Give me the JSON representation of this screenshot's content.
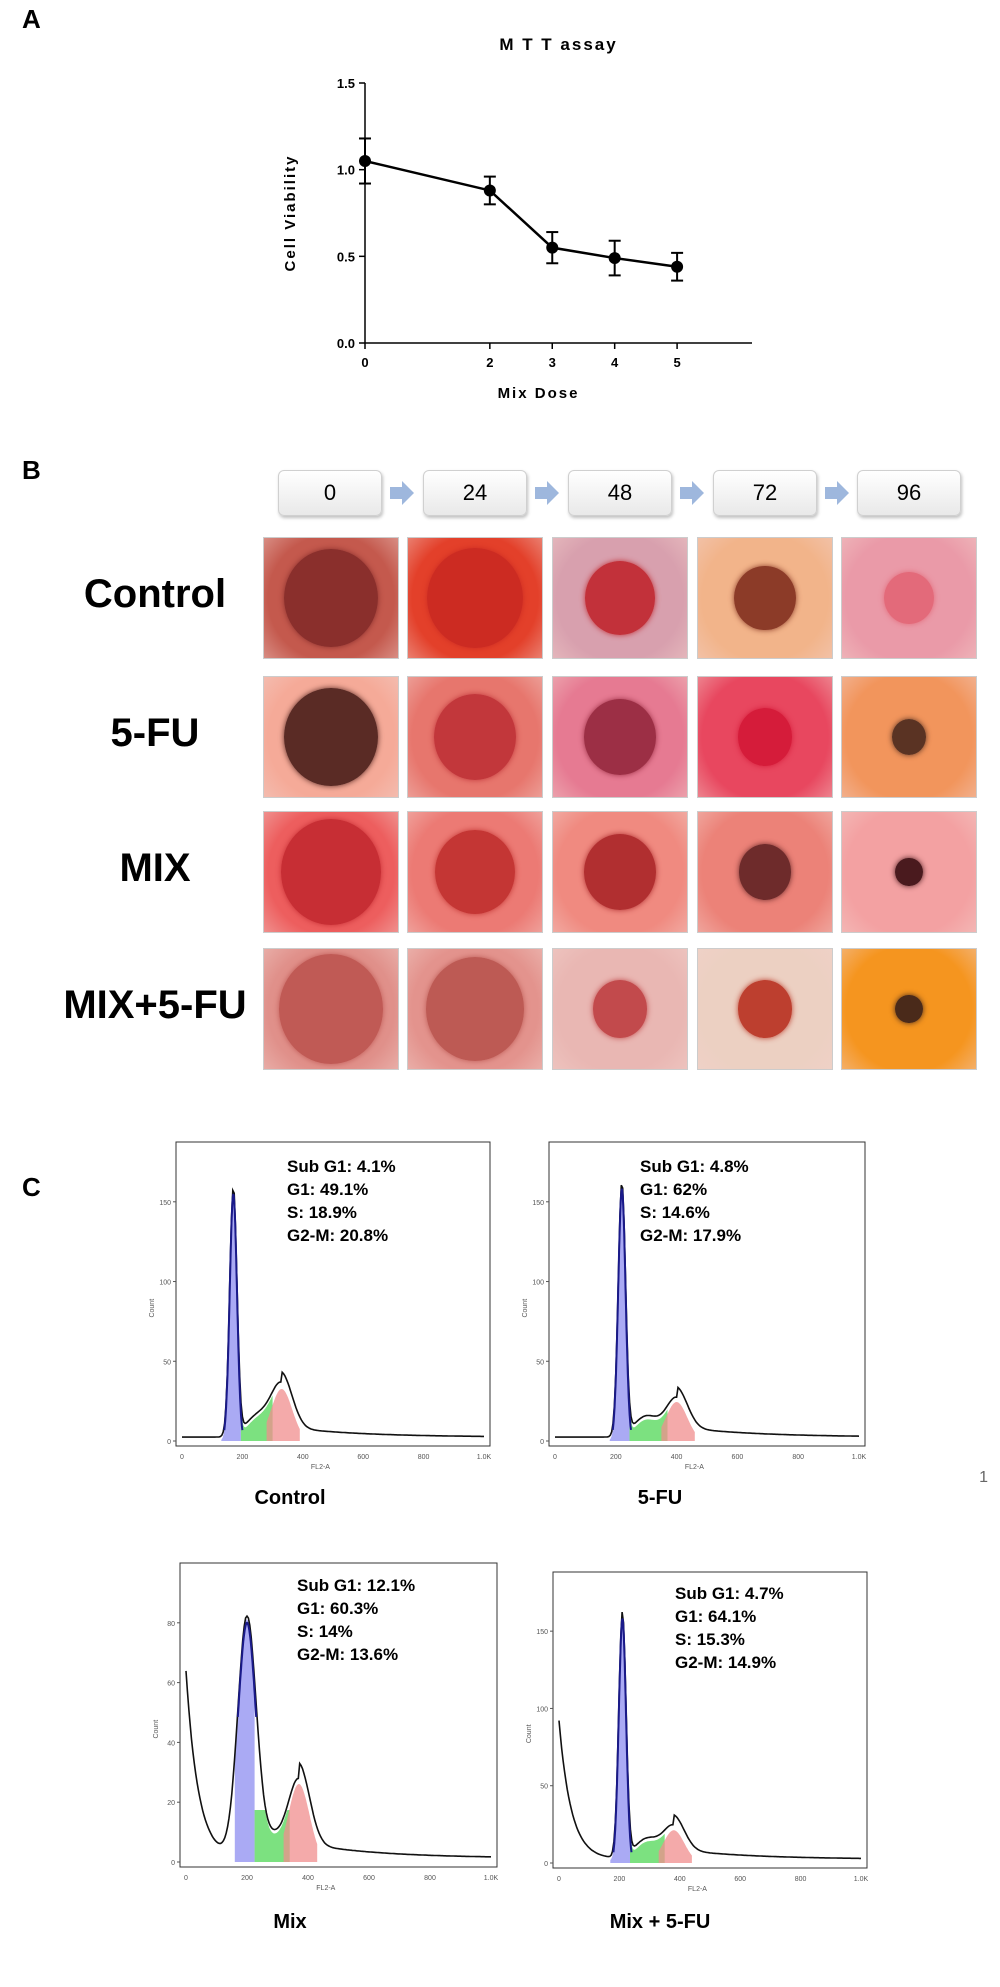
{
  "panel_labels": {
    "a": "A",
    "b": "B",
    "c": "C"
  },
  "chart_data": {
    "type": "line",
    "title": "M T T  assay",
    "xlabel": "Mix Dose",
    "ylabel": "Cell Viability",
    "x": [
      0,
      2,
      3,
      4,
      5
    ],
    "y": [
      1.05,
      0.88,
      0.55,
      0.49,
      0.44
    ],
    "error": [
      0.13,
      0.08,
      0.09,
      0.1,
      0.08
    ],
    "xticks": [
      "0",
      "2",
      "3",
      "4",
      "5"
    ],
    "yticks": [
      "0.0",
      "0.5",
      "1.0",
      "1.5"
    ],
    "xlim": [
      0,
      6.2
    ],
    "ylim": [
      0,
      1.5
    ],
    "grid": false,
    "color": "#000000"
  },
  "timepoints": [
    "0",
    "24",
    "48",
    "72",
    "96"
  ],
  "rows": [
    {
      "label": "Control",
      "bg": [
        "#c4594d",
        "#e3402a",
        "#d8a0ae",
        "#f2b48a",
        "#ea9aa8"
      ],
      "cell": [
        "#8a2f2c",
        "#cc2b22",
        "#c2313a",
        "#8c3b28",
        "#e36a7a"
      ],
      "size": [
        0.82,
        0.84,
        0.62,
        0.54,
        0.44
      ]
    },
    {
      "label": "5-FU",
      "bg": [
        "#f5aa98",
        "#e7766d",
        "#e67a92",
        "#e8475f",
        "#f2955c"
      ],
      "cell": [
        "#5a2b25",
        "#c2373b",
        "#9c2f45",
        "#d51c3a",
        "#5a3323"
      ],
      "size": [
        0.82,
        0.72,
        0.63,
        0.48,
        0.3
      ]
    },
    {
      "label": "MIX",
      "bg": [
        "#ed5e5e",
        "#ec7a74",
        "#f08a80",
        "#ec8278",
        "#f3a1a2"
      ],
      "cell": [
        "#c72e34",
        "#c43634",
        "#b12f30",
        "#6e2b2b",
        "#4a1a1e"
      ],
      "size": [
        0.88,
        0.7,
        0.63,
        0.46,
        0.24
      ]
    },
    {
      "label": "MIX+5-FU",
      "bg": [
        "#e0908a",
        "#e3938d",
        "#e9b7b3",
        "#ecd0c2",
        "#f5951f"
      ],
      "cell": [
        "#c05a55",
        "#bd5a54",
        "#c24a4c",
        "#bd3f2f",
        "#4a2a1a"
      ],
      "size": [
        0.92,
        0.86,
        0.48,
        0.48,
        0.24
      ]
    }
  ],
  "histograms": [
    {
      "title": "Control",
      "stats": [
        "Sub G1: 4.1%",
        "G1: 49.1%",
        "S: 18.9%",
        "G2-M: 20.8%"
      ],
      "yticks": [
        "0",
        "50",
        "100",
        "150"
      ],
      "xticks": [
        "0",
        "200",
        "400",
        "600",
        "800",
        "1.0K"
      ],
      "ylabel": "Count",
      "xlabel": "FL2-A"
    },
    {
      "title": "5-FU",
      "stats": [
        "Sub G1: 4.8%",
        "G1: 62%",
        "S: 14.6%",
        "G2-M: 17.9%"
      ],
      "yticks": [
        "0",
        "50",
        "100",
        "150"
      ],
      "xticks": [
        "0",
        "200",
        "400",
        "600",
        "800",
        "1.0K"
      ],
      "ylabel": "Count",
      "xlabel": "FL2-A"
    },
    {
      "title": "Mix",
      "stats": [
        "Sub G1: 12.1%",
        "G1: 60.3%",
        "S: 14%",
        "G2-M: 13.6%"
      ],
      "yticks": [
        "0",
        "20",
        "40",
        "60",
        "80"
      ],
      "xticks": [
        "0",
        "200",
        "400",
        "600",
        "800",
        "1.0K"
      ],
      "ylabel": "Count",
      "xlabel": "FL2-A"
    },
    {
      "title": "Mix + 5-FU",
      "stats": [
        "Sub G1: 4.7%",
        "G1: 64.1%",
        "S: 15.3%",
        "G2-M: 14.9%"
      ],
      "yticks": [
        "0",
        "50",
        "100",
        "150"
      ],
      "xticks": [
        "0",
        "200",
        "400",
        "600",
        "800",
        "1.0K"
      ],
      "ylabel": "Count",
      "xlabel": "FL2-A"
    }
  ],
  "page_number": "1"
}
